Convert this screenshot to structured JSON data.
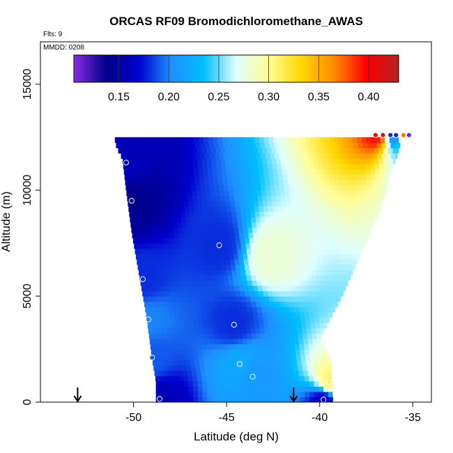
{
  "chart_data": {
    "type": "heatmap",
    "title": "ORCAS RF09 Bromodichloromethane_AWAS",
    "annotations": [
      "Flts: 9",
      "MMDD: 0208"
    ],
    "xlabel": "Latitude (deg N)",
    "ylabel": "Altitude (m)",
    "xlim": [
      -55,
      -34
    ],
    "ylim": [
      0,
      17000
    ],
    "xticks": [
      "-50",
      "-45",
      "-40",
      "-35"
    ],
    "xtick_values": [
      -50,
      -45,
      -40,
      -35
    ],
    "yticks": [
      "0",
      "5000",
      "10000",
      "15000"
    ],
    "ytick_values": [
      0,
      5000,
      10000,
      15000
    ],
    "colorbar": {
      "range": [
        0.105,
        0.43
      ],
      "ticks": [
        "0.15",
        "0.20",
        "0.25",
        "0.30",
        "0.35",
        "0.40"
      ],
      "tick_values": [
        0.15,
        0.2,
        0.25,
        0.3,
        0.35,
        0.4
      ],
      "placement": "top-inside",
      "colors": [
        "#8a2be2",
        "#00008b",
        "#0000cd",
        "#1e90ff",
        "#00bfff",
        "#e0ffff",
        "#ffff99",
        "#ffd700",
        "#ff8c00",
        "#ff0000",
        "#b22222"
      ]
    },
    "samples": [
      {
        "lat": -50.4,
        "alt": 11300,
        "value": 0.16
      },
      {
        "lat": -50.1,
        "alt": 9500,
        "value": 0.14
      },
      {
        "lat": -49.5,
        "alt": 5800,
        "value": 0.18
      },
      {
        "lat": -49.2,
        "alt": 3900,
        "value": 0.2
      },
      {
        "lat": -49.0,
        "alt": 2100,
        "value": 0.19
      },
      {
        "lat": -48.6,
        "alt": 150,
        "value": 0.16
      },
      {
        "lat": -45.4,
        "alt": 7400,
        "value": 0.18
      },
      {
        "lat": -44.6,
        "alt": 3650,
        "value": 0.18
      },
      {
        "lat": -44.3,
        "alt": 1800,
        "value": 0.22
      },
      {
        "lat": -43.6,
        "alt": 1200,
        "value": 0.21
      },
      {
        "lat": -42.7,
        "alt": 6900,
        "value": 0.28
      },
      {
        "lat": -39.5,
        "alt": 950,
        "value": 0.31
      },
      {
        "lat": -39.8,
        "alt": 120,
        "value": 0.16
      },
      {
        "lat": -37.0,
        "alt": 12600,
        "value": 0.4
      },
      {
        "lat": -36.6,
        "alt": 12600,
        "value": 0.41
      },
      {
        "lat": -36.2,
        "alt": 12600,
        "value": 0.18
      },
      {
        "lat": -35.9,
        "alt": 12600,
        "value": 0.18
      },
      {
        "lat": -35.5,
        "alt": 12600,
        "value": 0.37
      },
      {
        "lat": -35.2,
        "alt": 12600,
        "value": 0.11
      }
    ],
    "arrows_lat": [
      -53.0,
      -41.4
    ],
    "grid": false
  }
}
